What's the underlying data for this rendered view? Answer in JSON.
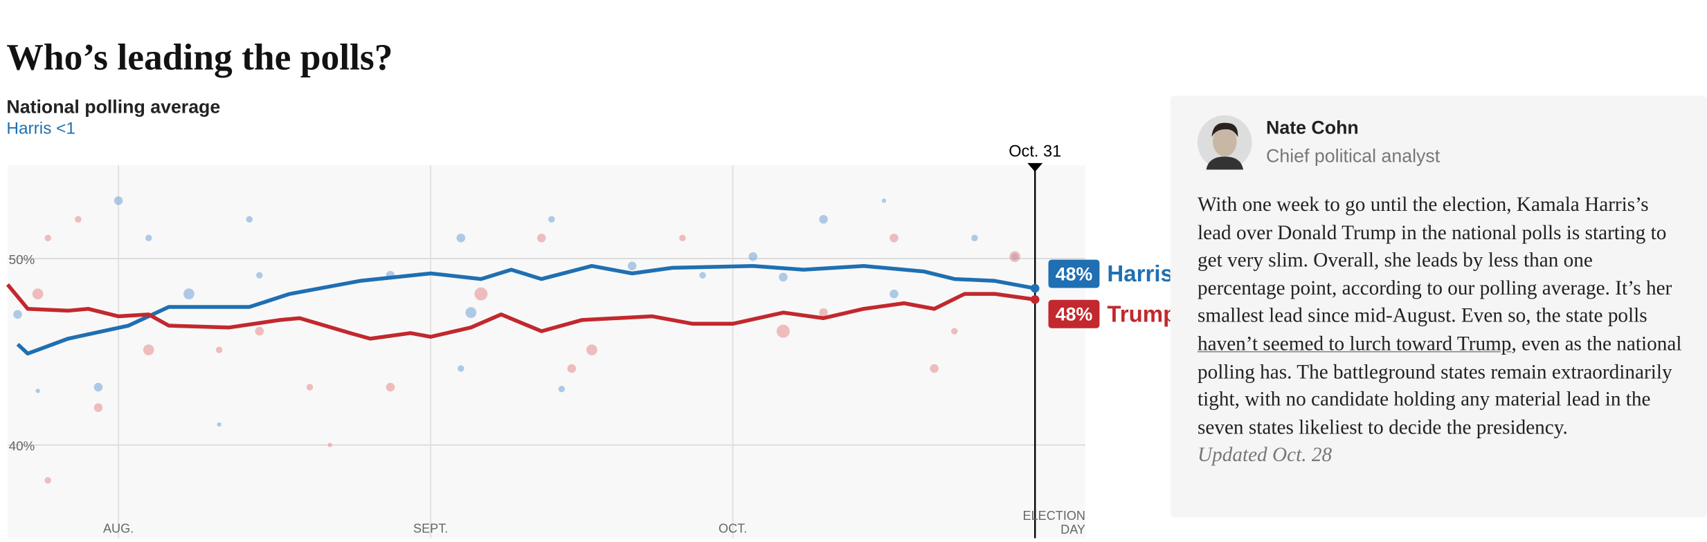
{
  "header": {
    "title": "Who’s leading the polls?",
    "subtitle": "National polling average",
    "lead": "Harris <1"
  },
  "chart_data": {
    "type": "line",
    "xlim": [
      0,
      107
    ],
    "xticks": [
      {
        "value": 11,
        "label": "AUG."
      },
      {
        "value": 42,
        "label": "SEPT."
      },
      {
        "value": 72,
        "label": "OCT."
      },
      {
        "value": 107,
        "label": "ELECTION DAY"
      }
    ],
    "ylim": [
      35,
      55
    ],
    "yticks": [
      {
        "value": 40,
        "label": "40%"
      },
      {
        "value": 50,
        "label": "50%"
      }
    ],
    "grid": true,
    "marker": {
      "value": 102,
      "label": "Oct. 31"
    },
    "series": [
      {
        "name": "Harris",
        "color": "#1f6fb2",
        "latest_label": "48%",
        "x": [
          1,
          2,
          6,
          12,
          16,
          24,
          28,
          35,
          42,
          47,
          50,
          53,
          58,
          62,
          66,
          74,
          79,
          85,
          91,
          94,
          98,
          102
        ],
        "values": [
          45.4,
          44.9,
          45.7,
          46.4,
          47.4,
          47.4,
          48.1,
          48.8,
          49.2,
          48.9,
          49.4,
          48.9,
          49.6,
          49.2,
          49.5,
          49.6,
          49.4,
          49.6,
          49.3,
          48.9,
          48.8,
          48.4
        ]
      },
      {
        "name": "Trump",
        "color": "#c2282d",
        "latest_label": "48%",
        "x": [
          0,
          2,
          6,
          8,
          11,
          14,
          16,
          22,
          27,
          29,
          34,
          36,
          40,
          42,
          46,
          49,
          53,
          57,
          64,
          68,
          72,
          77,
          81,
          85,
          89,
          92,
          95,
          98,
          102
        ],
        "values": [
          48.6,
          47.3,
          47.2,
          47.3,
          46.9,
          47.0,
          46.4,
          46.3,
          46.7,
          46.8,
          46.0,
          45.7,
          46.0,
          45.8,
          46.3,
          47.0,
          46.1,
          46.7,
          46.9,
          46.5,
          46.5,
          47.1,
          46.8,
          47.3,
          47.6,
          47.3,
          48.1,
          48.1,
          47.8
        ]
      }
    ],
    "polls": [
      {
        "color": "#6fa3d6",
        "x": [
          11,
          14,
          24,
          25,
          9,
          3,
          1,
          45,
          54,
          46,
          74,
          77,
          81,
          96,
          87,
          45,
          55,
          21,
          62,
          69,
          38,
          18,
          88,
          100
        ],
        "values": [
          53.1,
          51.1,
          52.1,
          49.1,
          43.1,
          42.9,
          47.0,
          51.1,
          52.1,
          47.1,
          50.1,
          49.0,
          52.1,
          51.1,
          53.1,
          44.1,
          43.0,
          41.1,
          49.6,
          49.1,
          49.1,
          48.1,
          48.1,
          50.1
        ],
        "sizes": [
          4,
          3,
          3,
          3,
          4,
          2,
          4,
          4,
          3,
          5,
          4,
          4,
          4,
          3,
          2,
          3,
          3,
          2,
          4,
          3,
          4,
          5,
          4,
          3
        ]
      },
      {
        "color": "#e58a8c",
        "x": [
          3,
          7,
          14,
          4,
          9,
          4,
          32,
          30,
          47,
          53,
          58,
          56,
          77,
          81,
          88,
          92,
          100,
          25,
          21,
          38,
          67,
          94
        ],
        "values": [
          48.1,
          52.1,
          45.1,
          51.1,
          42.0,
          38.1,
          40.0,
          43.1,
          48.1,
          51.1,
          45.1,
          44.1,
          46.1,
          47.1,
          51.1,
          44.1,
          50.1,
          46.1,
          45.1,
          43.1,
          51.1,
          46.1
        ],
        "sizes": [
          5,
          3,
          5,
          3,
          4,
          3,
          2,
          3,
          6,
          4,
          5,
          4,
          6,
          4,
          4,
          4,
          5,
          4,
          3,
          4,
          3,
          3
        ]
      }
    ]
  },
  "analysis": {
    "author": "Nate Cohn",
    "role": "Chief political analyst",
    "body": [
      "With one week to go until the election, Kamala Harris’s lead over Donald Trump in the national polls is starting to get very slim. Overall, she leads by less than one percentage point, according to our polling average. It’s her smallest lead since mid-August. Even so, the state polls ",
      "haven’t seemed to lurch toward Trump",
      ", even as the national polling has. The battleground states remain extraordinarily tight, with no candidate holding any material lead in the seven states likeliest to decide the presidency."
    ],
    "updated": "Updated Oct. 28"
  }
}
